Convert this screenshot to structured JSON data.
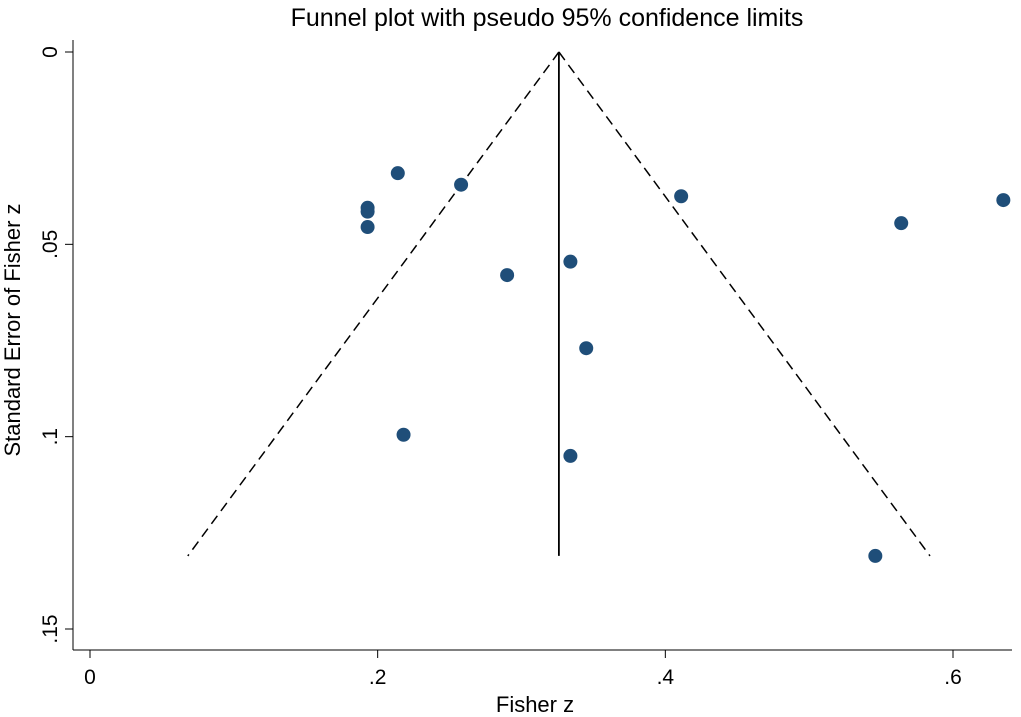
{
  "chart_data": {
    "type": "scatter",
    "title": "Funnel plot with pseudo 95% confidence limits",
    "xlabel": "Fisher z",
    "ylabel": "Standard Error of Fisher z",
    "xlim": [
      -0.01,
      0.645
    ],
    "ylim": [
      0,
      0.15
    ],
    "y_reversed": true,
    "x_ticks": [
      {
        "value": 0,
        "label": "0"
      },
      {
        "value": 0.2,
        "label": ".2"
      },
      {
        "value": 0.4,
        "label": ".4"
      },
      {
        "value": 0.6,
        "label": ".6"
      }
    ],
    "y_ticks": [
      {
        "value": 0,
        "label": "0"
      },
      {
        "value": 0.05,
        "label": ".05"
      },
      {
        "value": 0.1,
        "label": ".1"
      },
      {
        "value": 0.15,
        "label": ".15"
      }
    ],
    "pooled_estimate": 0.326,
    "max_se": 0.131,
    "ci_lines": {
      "apex": [
        0.326,
        0
      ],
      "lower_end": [
        0.068,
        0.131
      ],
      "upper_end": [
        0.584,
        0.131
      ]
    },
    "point_color": "#1f4e79",
    "points": [
      {
        "x": 0.214,
        "y": 0.0315
      },
      {
        "x": 0.258,
        "y": 0.0345
      },
      {
        "x": 0.193,
        "y": 0.0405
      },
      {
        "x": 0.193,
        "y": 0.0415
      },
      {
        "x": 0.193,
        "y": 0.0455
      },
      {
        "x": 0.411,
        "y": 0.0375
      },
      {
        "x": 0.635,
        "y": 0.0385
      },
      {
        "x": 0.564,
        "y": 0.0445
      },
      {
        "x": 0.29,
        "y": 0.058
      },
      {
        "x": 0.334,
        "y": 0.0545
      },
      {
        "x": 0.345,
        "y": 0.077
      },
      {
        "x": 0.218,
        "y": 0.0995
      },
      {
        "x": 0.334,
        "y": 0.105
      },
      {
        "x": 0.546,
        "y": 0.131
      }
    ]
  }
}
